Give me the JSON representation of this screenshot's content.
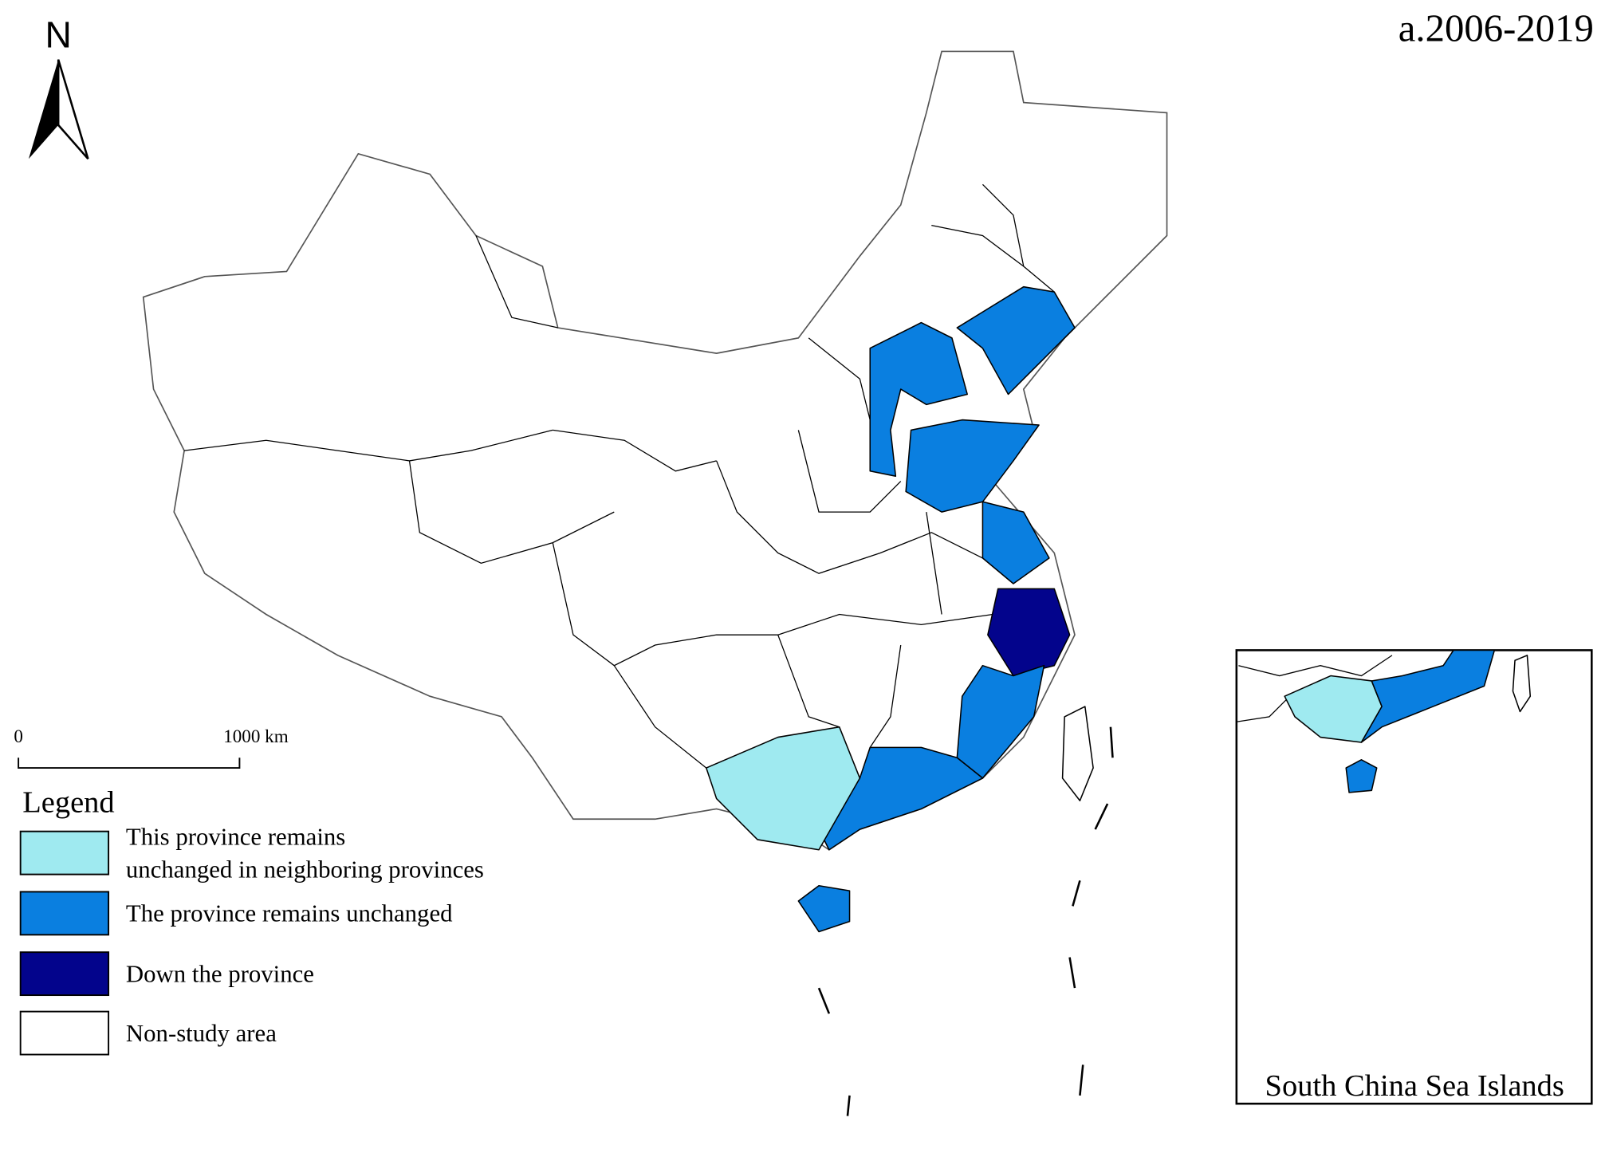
{
  "north_label": "N",
  "title": "a.2006-2019",
  "scale_bar": {
    "start": "0",
    "end": "1000 km"
  },
  "legend": {
    "title": "Legend",
    "items": [
      {
        "lines": [
          "This province remains",
          "unchanged in neighboring provinces"
        ],
        "color": "#9feaf0"
      },
      {
        "lines": [
          "The province remains unchanged"
        ],
        "color": "#0a7fe0"
      },
      {
        "lines": [
          "Down the province"
        ],
        "color": "#03048c"
      },
      {
        "lines": [
          "Non-study area"
        ],
        "color": "#ffffff"
      }
    ]
  },
  "inset_label": "South China Sea Islands"
}
